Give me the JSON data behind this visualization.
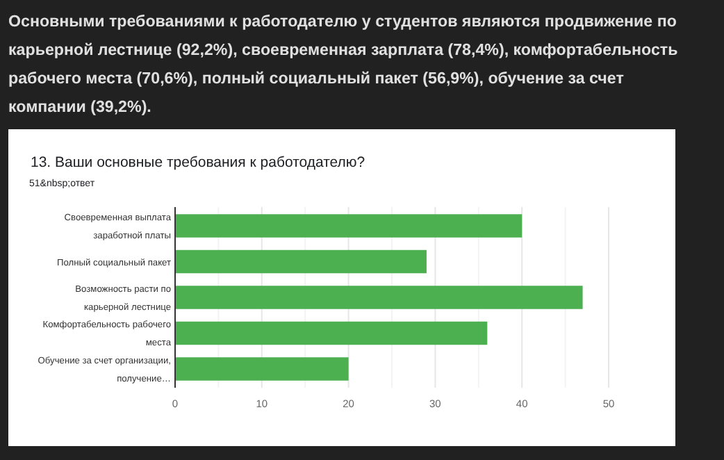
{
  "chart_data": {
    "type": "bar",
    "orientation": "horizontal",
    "title": "13. Ваши основные требования к работодателю?",
    "subtitle": "51&nbsp;ответ",
    "annotations": [
      "Основными требованиями к работодателю у студентов являются продвижение по карьерной лестнице (92,2%), своевременная зарплата (78,4%), комфортабельность рабочего места (70,6%), полный социальный пакет (56,9%), обучение за счет компании (39,2%)."
    ],
    "categories": [
      "Своевременная выплата заработной платы",
      "Полный социальный пакет",
      "Возможность расти по карьерной лестнице",
      "Комфортабельность рабочего места",
      "Обучение за счет организации, получение…"
    ],
    "values": [
      40,
      29,
      47,
      36,
      20
    ],
    "color": "#4caf50",
    "xlim": [
      0,
      50
    ],
    "xticks": [
      0,
      {
        "value": 5,
        "label": null
      },
      10,
      {
        "value": 15,
        "label": null
      },
      20,
      {
        "value": 25,
        "label": null
      },
      30,
      {
        "value": 35,
        "label": null
      },
      40,
      {
        "value": 45,
        "label": null
      },
      50
    ],
    "grid": "x"
  }
}
